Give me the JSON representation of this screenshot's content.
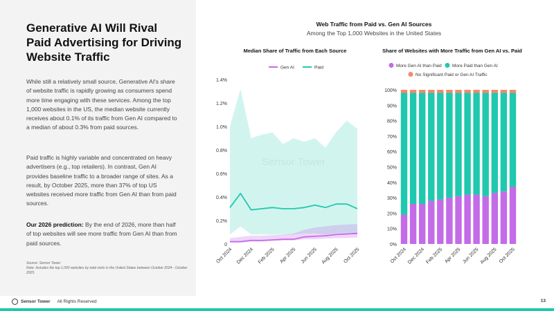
{
  "headline": "Generative AI Will Rival Paid Advertising for Driving Website Traffic",
  "paragraph1": "While still a relatively small source, Generative AI's share of website traffic is rapidly growing as consumers spend more time engaging with these services. Among the top 1,000 websites in the US, the median website currently receives about 0.1% of its traffic from Gen AI compared to a median of about 0.3% from paid sources.",
  "paragraph2": "Paid traffic is highly variable and concentrated on heavy advertisers (e.g., top retailers). In contrast, Gen AI provides baseline traffic to a broader range of sites. As a result, by October 2025, more than 37% of top US websites received more traffic from Gen AI than from paid sources.",
  "prediction_label": "Our 2026 prediction:",
  "prediction_text": " By the end of 2026, more than half of top websites will see more traffic from Gen AI than from paid sources.",
  "source": "Source: Sensor Tower",
  "note": "Note: Includes the top 1,000 websites by total visits in the United States between October 2024 - October 2025.",
  "main_title": "Web Traffic from Paid vs. Gen AI Sources",
  "main_subtitle": "Among the Top 1,000 Websites in the United States",
  "watermark": "Sensor Tower",
  "footer": {
    "brand": "Sensor Tower",
    "rights": "All Rights Reserved",
    "page": "13"
  },
  "colors": {
    "gen_ai": "#c46be8",
    "paid": "#1ec9ae",
    "no_sig": "#f4896b",
    "bottom_bar": "#1ec9ae"
  },
  "chart_data": [
    {
      "type": "line",
      "title": "Median Share of Traffic from Each Source",
      "x": [
        "Oct 2024",
        "Nov 2024",
        "Dec 2024",
        "Jan 2025",
        "Feb 2025",
        "Mar 2025",
        "Apr 2025",
        "May 2025",
        "Jun 2025",
        "Jul 2025",
        "Aug 2025",
        "Sep 2025",
        "Oct 2025"
      ],
      "xticks": [
        "Oct 2024",
        "Dec 2024",
        "Feb 2025",
        "Apr 2025",
        "Jun 2025",
        "Aug 2025",
        "Oct 2025"
      ],
      "yticks": [
        "0",
        "0.2%",
        "0.4%",
        "0.6%",
        "0.8%",
        "1.0%",
        "1.2%",
        "1.4%"
      ],
      "ylim": [
        0,
        1.4
      ],
      "legend": [
        "Gen AI",
        "Paid"
      ],
      "series": [
        {
          "name": "Gen AI",
          "values": [
            0.02,
            0.02,
            0.03,
            0.03,
            0.035,
            0.04,
            0.04,
            0.06,
            0.065,
            0.07,
            0.08,
            0.085,
            0.09
          ],
          "band_low": [
            0.01,
            0.01,
            0.02,
            0.02,
            0.025,
            0.03,
            0.03,
            0.04,
            0.04,
            0.045,
            0.05,
            0.05,
            0.055
          ],
          "band_high": [
            0.05,
            0.06,
            0.07,
            0.07,
            0.075,
            0.08,
            0.09,
            0.12,
            0.14,
            0.15,
            0.16,
            0.165,
            0.17
          ]
        },
        {
          "name": "Paid",
          "values": [
            0.31,
            0.43,
            0.29,
            0.3,
            0.31,
            0.3,
            0.3,
            0.31,
            0.33,
            0.31,
            0.34,
            0.34,
            0.3
          ],
          "band_low": [
            0.08,
            0.15,
            0.08,
            0.08,
            0.08,
            0.08,
            0.08,
            0.09,
            0.09,
            0.08,
            0.09,
            0.09,
            0.08
          ],
          "band_high": [
            1.0,
            1.32,
            0.9,
            0.93,
            0.95,
            0.85,
            0.9,
            0.87,
            0.9,
            0.82,
            0.95,
            1.05,
            0.98
          ]
        }
      ]
    },
    {
      "type": "bar",
      "stacked": true,
      "title": "Share of Websites with More Traffic from Gen AI vs. Paid",
      "categories": [
        "Oct 2024",
        "Nov 2024",
        "Dec 2024",
        "Jan 2025",
        "Feb 2025",
        "Mar 2025",
        "Apr 2025",
        "May 2025",
        "Jun 2025",
        "Jul 2025",
        "Aug 2025",
        "Sep 2025",
        "Oct 2025"
      ],
      "xticks": [
        "Oct 2024",
        "Dec 2024",
        "Feb 2025",
        "Apr 2025",
        "Jun 2025",
        "Aug 2025",
        "Oct 2025"
      ],
      "yticks": [
        "0%",
        "10%",
        "20%",
        "30%",
        "40%",
        "50%",
        "60%",
        "70%",
        "80%",
        "90%",
        "100%"
      ],
      "ylim": [
        0,
        100
      ],
      "legend": [
        "More Gen AI than Paid",
        "More Paid than Gen AI",
        "No Significant Paid or Gen AI Traffic"
      ],
      "series": [
        {
          "name": "More Gen AI than Paid",
          "values": [
            19,
            26,
            26,
            28,
            29,
            30,
            31,
            32,
            32,
            31,
            33,
            34,
            37
          ]
        },
        {
          "name": "More Paid than Gen AI",
          "values": [
            79,
            72,
            72,
            70,
            69,
            68,
            67,
            66,
            66,
            67,
            65,
            64,
            61
          ]
        },
        {
          "name": "No Significant Paid or Gen AI Traffic",
          "values": [
            2,
            2,
            2,
            2,
            2,
            2,
            2,
            2,
            2,
            2,
            2,
            2,
            2
          ]
        }
      ]
    }
  ]
}
